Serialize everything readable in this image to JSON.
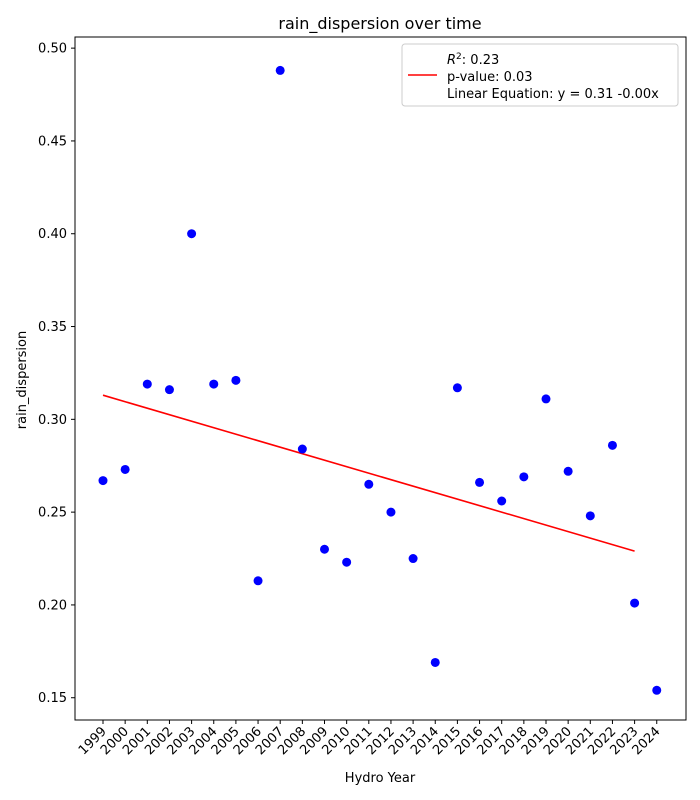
{
  "chart_data": {
    "type": "scatter",
    "title": "rain_dispersion over time",
    "xlabel": "Hydro Year",
    "ylabel": "rain_dispersion",
    "x": [
      "1999",
      "2000",
      "2001",
      "2002",
      "2003",
      "2004",
      "2005",
      "2006",
      "2007",
      "2008",
      "2009",
      "2010",
      "2011",
      "2012",
      "2013",
      "2014",
      "2015",
      "2016",
      "2017",
      "2018",
      "2019",
      "2020",
      "2021",
      "2022",
      "2023",
      "2024"
    ],
    "y": [
      0.267,
      0.273,
      0.319,
      0.316,
      0.4,
      0.319,
      0.321,
      0.213,
      0.488,
      0.284,
      0.23,
      0.223,
      0.265,
      0.25,
      0.225,
      0.169,
      0.317,
      0.266,
      0.256,
      0.269,
      0.311,
      0.272,
      0.248,
      0.286,
      0.201,
      0.154
    ],
    "ylim": [
      0.138,
      0.506
    ],
    "yticks": [
      "0.15",
      "0.20",
      "0.25",
      "0.30",
      "0.35",
      "0.40",
      "0.45",
      "0.50"
    ],
    "point_color": "#0000ff",
    "trend": {
      "color": "#ff0000",
      "x_start": "1999",
      "x_end": "2023",
      "y_start": 0.313,
      "y_end": 0.229
    },
    "legend": {
      "placement": "top-right",
      "r2_prefix": "R",
      "r2_sup": "2",
      "r2_value": ": 0.23",
      "pvalue": "p-value: 0.03",
      "equation": "Linear Equation: y = 0.31 -0.00x"
    },
    "grid": false
  }
}
